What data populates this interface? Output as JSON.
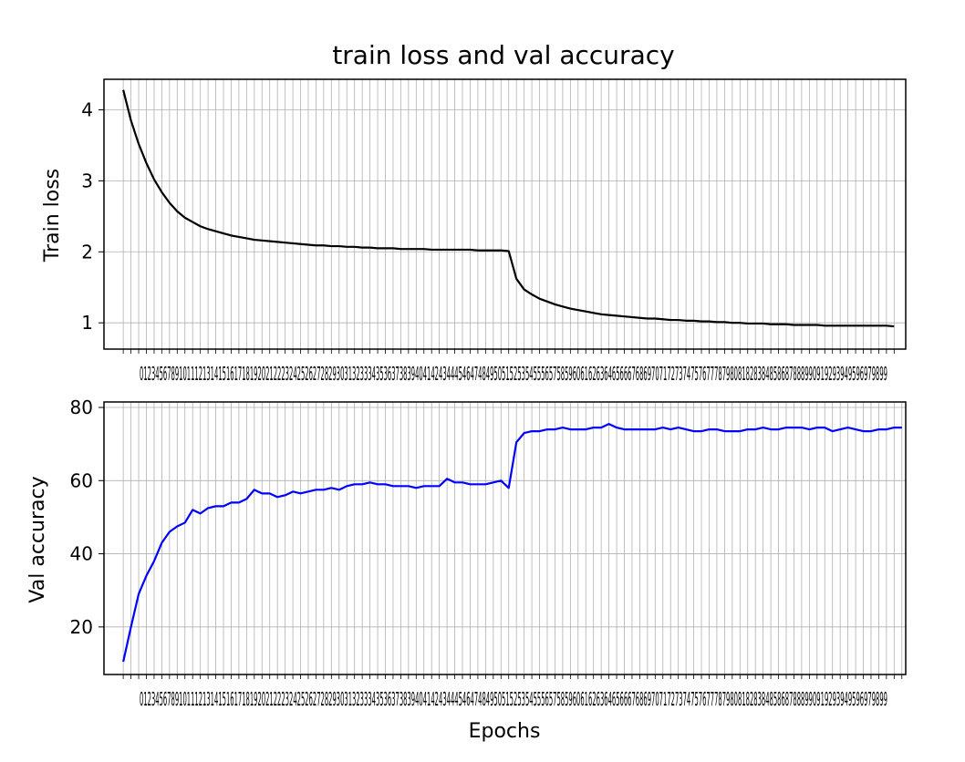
{
  "chart_data": [
    {
      "type": "line",
      "title": "train loss and val accuracy",
      "xlabel": "",
      "ylabel": "Train loss",
      "xlim": [
        -2.5,
        101.5
      ],
      "ylim": [
        0.63,
        4.43
      ],
      "yticks": [
        1,
        2,
        3,
        4
      ],
      "xticks_label_text": "0123456789101112131415161718192021222324252627282930313233343536373839404142434445464748495051525354555657585960616263646566676869707172737475767778798081828384858687888990919293949596979899",
      "grid": true,
      "series": [
        {
          "color": "#000000",
          "x_start": 0,
          "values": [
            4.28,
            3.85,
            3.52,
            3.25,
            3.02,
            2.84,
            2.69,
            2.57,
            2.48,
            2.42,
            2.36,
            2.32,
            2.29,
            2.26,
            2.23,
            2.21,
            2.19,
            2.17,
            2.16,
            2.15,
            2.14,
            2.13,
            2.12,
            2.11,
            2.1,
            2.09,
            2.09,
            2.08,
            2.08,
            2.07,
            2.07,
            2.06,
            2.06,
            2.05,
            2.05,
            2.05,
            2.04,
            2.04,
            2.04,
            2.04,
            2.03,
            2.03,
            2.03,
            2.03,
            2.03,
            2.03,
            2.02,
            2.02,
            2.02,
            2.02,
            2.01,
            1.62,
            1.47,
            1.4,
            1.34,
            1.3,
            1.26,
            1.23,
            1.2,
            1.18,
            1.16,
            1.14,
            1.12,
            1.11,
            1.1,
            1.09,
            1.08,
            1.07,
            1.06,
            1.06,
            1.05,
            1.04,
            1.04,
            1.03,
            1.03,
            1.02,
            1.02,
            1.01,
            1.01,
            1.0,
            1.0,
            0.99,
            0.99,
            0.99,
            0.98,
            0.98,
            0.98,
            0.97,
            0.97,
            0.97,
            0.97,
            0.96,
            0.96,
            0.96,
            0.96,
            0.96,
            0.96,
            0.96,
            0.96,
            0.96,
            0.95
          ]
        }
      ]
    },
    {
      "type": "line",
      "title": "",
      "xlabel": "Epochs",
      "ylabel": "Val accuracy",
      "xlim": [
        -2.5,
        101.5
      ],
      "ylim": [
        7,
        81.5
      ],
      "yticks": [
        20,
        40,
        60,
        80
      ],
      "xticks_label_text": "0123456789101112131415161718192021222324252627282930313233343536373839404142434445464748495051525354555657585960616263646566676869707172737475767778798081828384858687888990919293949596979899",
      "grid": true,
      "series": [
        {
          "color": "#0000ff",
          "x_start": 0,
          "values": [
            10.5,
            20,
            29,
            34,
            38,
            43,
            46,
            47.5,
            48.5,
            52,
            51,
            52.5,
            53,
            53,
            54,
            54,
            55,
            57.5,
            56.5,
            56.5,
            55.5,
            56,
            57,
            56.5,
            57,
            57.5,
            57.5,
            58,
            57.5,
            58.5,
            59,
            59,
            59.5,
            59,
            59,
            58.5,
            58.5,
            58.5,
            58,
            58.5,
            58.5,
            58.5,
            60.5,
            59.5,
            59.5,
            59,
            59,
            59,
            59.5,
            60,
            58,
            70.5,
            73,
            73.5,
            73.5,
            74,
            74,
            74.5,
            74,
            74,
            74,
            74.5,
            74.5,
            75.5,
            74.5,
            74,
            74,
            74,
            74,
            74,
            74.5,
            74,
            74.5,
            74,
            73.5,
            73.5,
            74,
            74,
            73.5,
            73.5,
            73.5,
            74,
            74,
            74.5,
            74,
            74,
            74.5,
            74.5,
            74.5,
            74,
            74.5,
            74.5,
            73.5,
            74,
            74.5,
            74,
            73.5,
            73.5,
            74,
            74,
            74.5,
            74.5
          ]
        }
      ]
    }
  ]
}
